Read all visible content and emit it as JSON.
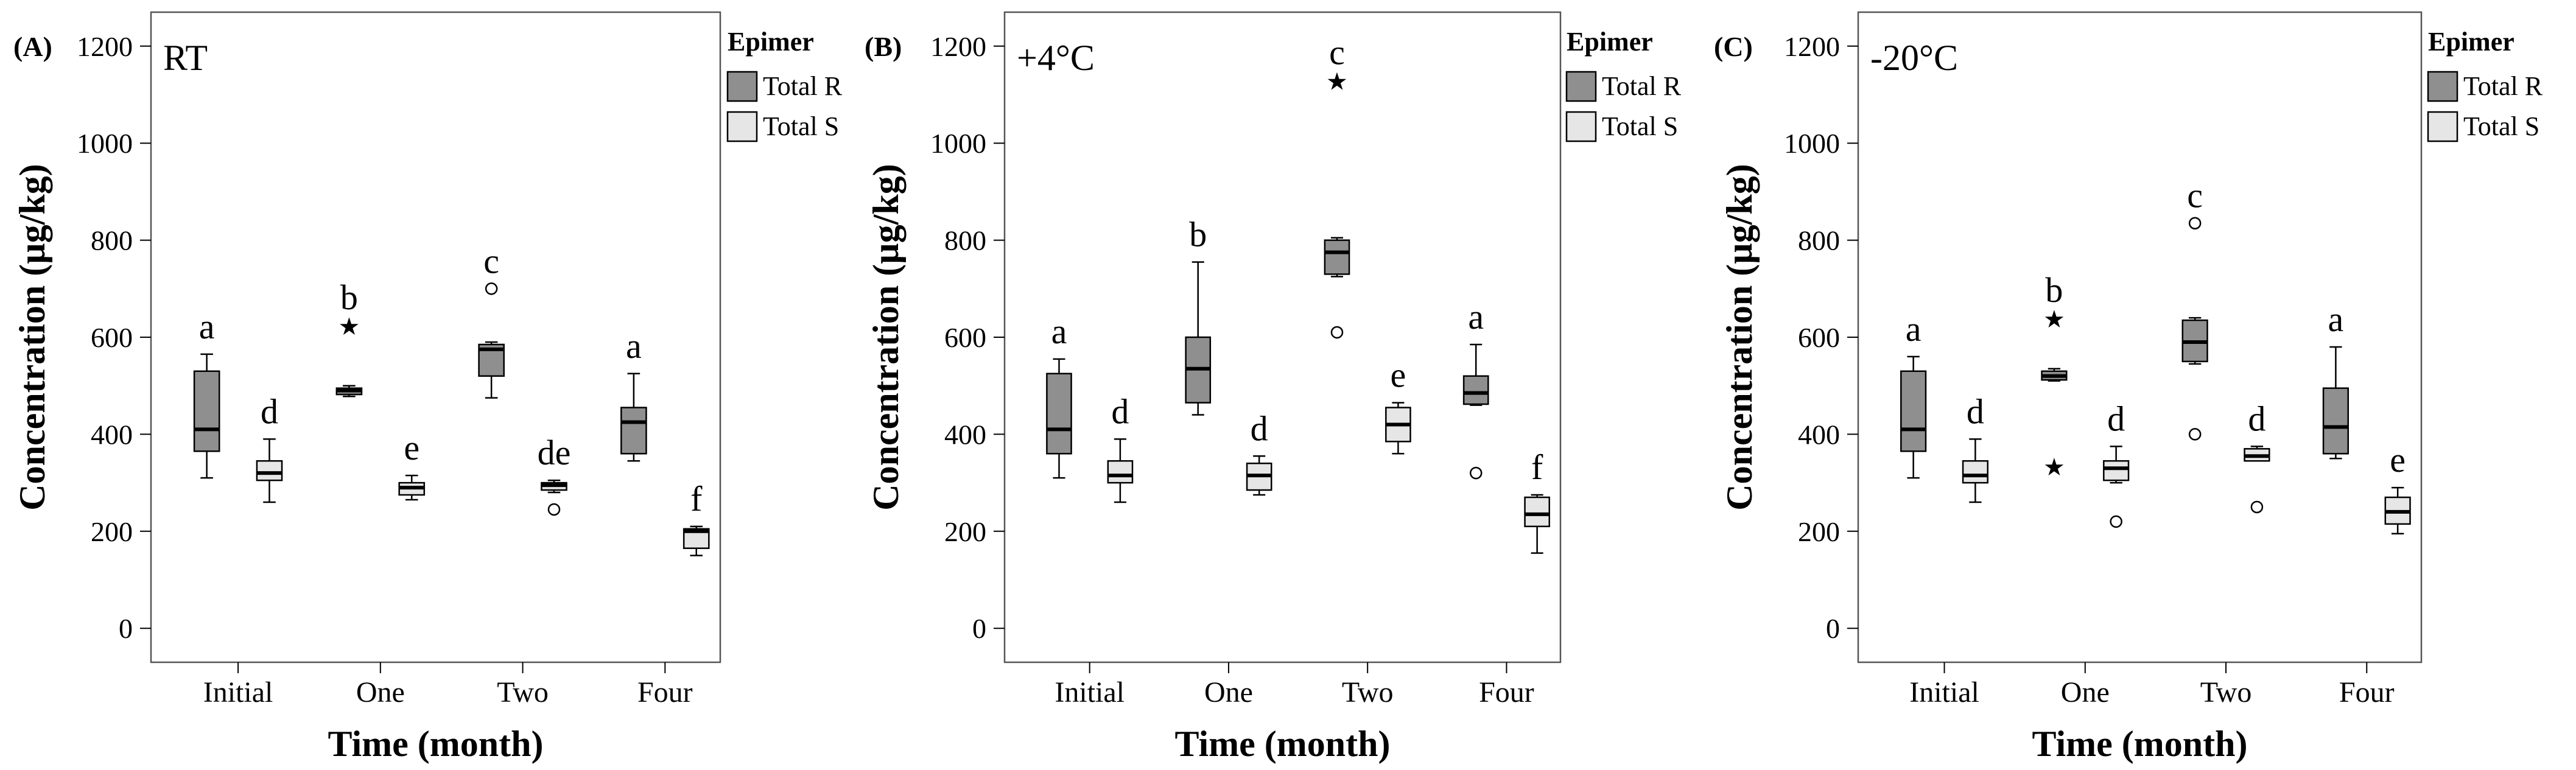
{
  "figure": {
    "xlabel": "Time (month)",
    "ylabel": "Concentration (µg/kg)",
    "legend_title": "Epimer"
  },
  "colors": {
    "total_r": "#8f8f8f",
    "total_s": "#e6e6e6",
    "frame": "#555555"
  },
  "chart_data": [
    {
      "type": "box",
      "panel_label": "(A)",
      "condition": "RT",
      "xlabel": "Time (month)",
      "ylabel": "Concentration (µg/kg)",
      "categories": [
        "Initial",
        "One",
        "Two",
        "Four"
      ],
      "ylim": [
        -70,
        1270
      ],
      "yticks": [
        0,
        200,
        400,
        600,
        800,
        1000,
        1200
      ],
      "legend": {
        "title": "Epimer",
        "placement": "outside-right",
        "entries": [
          "Total R",
          "Total S"
        ]
      },
      "series": [
        {
          "name": "Total R",
          "boxes": [
            {
              "min": 310,
              "q1": 365,
              "median": 410,
              "q3": 530,
              "max": 565,
              "outliers": [],
              "extremes": [],
              "letter": "a"
            },
            {
              "min": 478,
              "q1": 482,
              "median": 490,
              "q3": 495,
              "max": 500,
              "outliers": [],
              "extremes": [
                625
              ],
              "letter": "b"
            },
            {
              "min": 475,
              "q1": 520,
              "median": 575,
              "q3": 585,
              "max": 590,
              "outliers": [
                700
              ],
              "extremes": [],
              "letter": "c"
            },
            {
              "min": 345,
              "q1": 360,
              "median": 425,
              "q3": 455,
              "max": 525,
              "outliers": [],
              "extremes": [],
              "letter": "a"
            }
          ]
        },
        {
          "name": "Total S",
          "boxes": [
            {
              "min": 260,
              "q1": 305,
              "median": 320,
              "q3": 345,
              "max": 390,
              "outliers": [],
              "extremes": [],
              "letter": "d"
            },
            {
              "min": 265,
              "q1": 275,
              "median": 290,
              "q3": 300,
              "max": 315,
              "outliers": [],
              "extremes": [],
              "letter": "e"
            },
            {
              "min": 280,
              "q1": 285,
              "median": 295,
              "q3": 300,
              "max": 305,
              "outliers": [
                245
              ],
              "extremes": [],
              "letter": "de"
            },
            {
              "min": 150,
              "q1": 165,
              "median": 200,
              "q3": 205,
              "max": 210,
              "outliers": [],
              "extremes": [],
              "letter": "f"
            }
          ]
        }
      ]
    },
    {
      "type": "box",
      "panel_label": "(B)",
      "condition": "+4°C",
      "xlabel": "Time (month)",
      "ylabel": "Concentration (µg/kg)",
      "categories": [
        "Initial",
        "One",
        "Two",
        "Four"
      ],
      "ylim": [
        -70,
        1270
      ],
      "yticks": [
        0,
        200,
        400,
        600,
        800,
        1000,
        1200
      ],
      "legend": {
        "title": "Epimer",
        "placement": "outside-right",
        "entries": [
          "Total R",
          "Total S"
        ]
      },
      "series": [
        {
          "name": "Total R",
          "boxes": [
            {
              "min": 310,
              "q1": 360,
              "median": 410,
              "q3": 525,
              "max": 555,
              "outliers": [],
              "extremes": [],
              "letter": "a"
            },
            {
              "min": 440,
              "q1": 465,
              "median": 535,
              "q3": 600,
              "max": 755,
              "outliers": [],
              "extremes": [],
              "letter": "b"
            },
            {
              "min": 725,
              "q1": 730,
              "median": 775,
              "q3": 800,
              "max": 805,
              "outliers": [
                610
              ],
              "extremes": [
                1130
              ],
              "letter": "c"
            },
            {
              "min": 460,
              "q1": 462,
              "median": 485,
              "q3": 520,
              "max": 585,
              "outliers": [
                320
              ],
              "extremes": [],
              "letter": "a"
            }
          ]
        },
        {
          "name": "Total S",
          "boxes": [
            {
              "min": 260,
              "q1": 300,
              "median": 315,
              "q3": 345,
              "max": 390,
              "outliers": [],
              "extremes": [],
              "letter": "d"
            },
            {
              "min": 275,
              "q1": 285,
              "median": 315,
              "q3": 340,
              "max": 355,
              "outliers": [],
              "extremes": [],
              "letter": "d"
            },
            {
              "min": 360,
              "q1": 385,
              "median": 420,
              "q3": 455,
              "max": 465,
              "outliers": [],
              "extremes": [],
              "letter": "e"
            },
            {
              "min": 155,
              "q1": 210,
              "median": 235,
              "q3": 270,
              "max": 275,
              "outliers": [],
              "extremes": [],
              "letter": "f"
            }
          ]
        }
      ]
    },
    {
      "type": "box",
      "panel_label": "(C)",
      "condition": "-20°C",
      "xlabel": "Time (month)",
      "ylabel": "Concentration (µg/kg)",
      "categories": [
        "Initial",
        "One",
        "Two",
        "Four"
      ],
      "ylim": [
        -70,
        1270
      ],
      "yticks": [
        0,
        200,
        400,
        600,
        800,
        1000,
        1200
      ],
      "legend": {
        "title": "Epimer",
        "placement": "outside-right",
        "entries": [
          "Total R",
          "Total S"
        ]
      },
      "series": [
        {
          "name": "Total R",
          "boxes": [
            {
              "min": 310,
              "q1": 365,
              "median": 410,
              "q3": 530,
              "max": 560,
              "outliers": [],
              "extremes": [],
              "letter": "a"
            },
            {
              "min": 510,
              "q1": 512,
              "median": 520,
              "q3": 530,
              "max": 535,
              "outliers": [],
              "extremes": [
                640,
                335
              ],
              "letter": "b"
            },
            {
              "min": 545,
              "q1": 550,
              "median": 590,
              "q3": 635,
              "max": 640,
              "outliers": [
                835,
                400
              ],
              "extremes": [],
              "letter": "c"
            },
            {
              "min": 350,
              "q1": 360,
              "median": 415,
              "q3": 495,
              "max": 580,
              "outliers": [],
              "extremes": [],
              "letter": "a"
            }
          ]
        },
        {
          "name": "Total S",
          "boxes": [
            {
              "min": 260,
              "q1": 300,
              "median": 315,
              "q3": 345,
              "max": 390,
              "outliers": [],
              "extremes": [],
              "letter": "d"
            },
            {
              "min": 300,
              "q1": 305,
              "median": 330,
              "q3": 345,
              "max": 375,
              "outliers": [
                220
              ],
              "extremes": [],
              "letter": "d"
            },
            {
              "min": 345,
              "q1": 345,
              "median": 355,
              "q3": 370,
              "max": 375,
              "outliers": [
                250
              ],
              "extremes": [],
              "letter": "d"
            },
            {
              "min": 195,
              "q1": 215,
              "median": 240,
              "q3": 270,
              "max": 290,
              "outliers": [],
              "extremes": [],
              "letter": "e"
            }
          ]
        }
      ]
    }
  ]
}
